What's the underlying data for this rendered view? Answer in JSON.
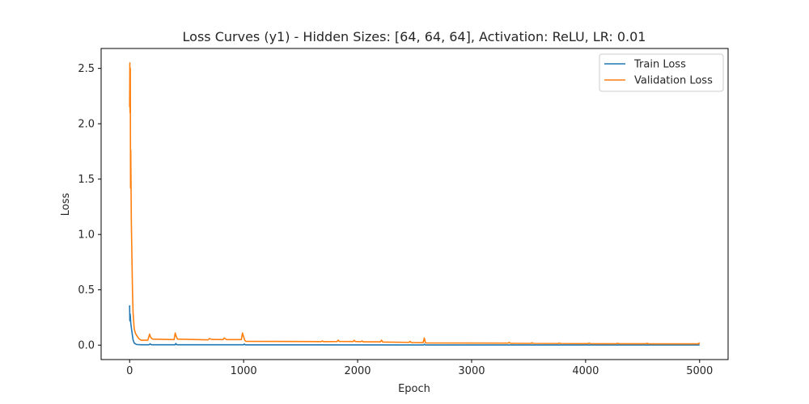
{
  "chart_data": {
    "type": "line",
    "title": "Loss Curves (y1) - Hidden Sizes: [64, 64, 64], Activation: ReLU, LR: 0.01",
    "xlabel": "Epoch",
    "ylabel": "Loss",
    "xlim": [
      -250,
      5250
    ],
    "ylim": [
      -0.13,
      2.68
    ],
    "xticks": [
      0,
      1000,
      2000,
      3000,
      4000,
      5000
    ],
    "xtick_labels": [
      "0",
      "1000",
      "2000",
      "3000",
      "4000",
      "5000"
    ],
    "yticks": [
      0.0,
      0.5,
      1.0,
      1.5,
      2.0,
      2.5
    ],
    "ytick_labels": [
      "0.0",
      "0.5",
      "1.0",
      "1.5",
      "2.0",
      "2.5"
    ],
    "grid": false,
    "legend_position": "top-right",
    "series": [
      {
        "name": "Train Loss",
        "color": "#1f77b4",
        "points": [
          [
            0,
            0.36
          ],
          [
            2,
            0.22
          ],
          [
            5,
            0.28
          ],
          [
            10,
            0.2
          ],
          [
            20,
            0.12
          ],
          [
            30,
            0.05
          ],
          [
            40,
            0.02
          ],
          [
            60,
            0.006
          ],
          [
            100,
            0.004
          ],
          [
            170,
            0.004
          ],
          [
            180,
            0.012
          ],
          [
            190,
            0.004
          ],
          [
            400,
            0.004
          ],
          [
            405,
            0.015
          ],
          [
            415,
            0.004
          ],
          [
            1000,
            0.004
          ],
          [
            1005,
            0.01
          ],
          [
            1015,
            0.003
          ],
          [
            2580,
            0.002
          ],
          [
            2585,
            0.008
          ],
          [
            2595,
            0.002
          ],
          [
            3500,
            0.002
          ],
          [
            4500,
            0.002
          ],
          [
            5000,
            0.002
          ]
        ]
      },
      {
        "name": "Validation Loss",
        "color": "#ff7f0e",
        "points": [
          [
            0,
            2.15
          ],
          [
            2,
            2.55
          ],
          [
            4,
            2.1
          ],
          [
            6,
            2.5
          ],
          [
            8,
            1.42
          ],
          [
            10,
            1.76
          ],
          [
            12,
            1.5
          ],
          [
            15,
            1.12
          ],
          [
            20,
            0.8
          ],
          [
            25,
            0.5
          ],
          [
            30,
            0.3
          ],
          [
            40,
            0.15
          ],
          [
            50,
            0.11
          ],
          [
            60,
            0.09
          ],
          [
            80,
            0.06
          ],
          [
            100,
            0.045
          ],
          [
            160,
            0.045
          ],
          [
            175,
            0.1
          ],
          [
            185,
            0.07
          ],
          [
            200,
            0.055
          ],
          [
            390,
            0.05
          ],
          [
            400,
            0.11
          ],
          [
            410,
            0.075
          ],
          [
            420,
            0.055
          ],
          [
            690,
            0.048
          ],
          [
            700,
            0.06
          ],
          [
            720,
            0.052
          ],
          [
            820,
            0.05
          ],
          [
            830,
            0.065
          ],
          [
            850,
            0.05
          ],
          [
            980,
            0.05
          ],
          [
            990,
            0.11
          ],
          [
            1000,
            0.075
          ],
          [
            1010,
            0.045
          ],
          [
            1020,
            0.035
          ],
          [
            1680,
            0.032
          ],
          [
            1690,
            0.038
          ],
          [
            1700,
            0.032
          ],
          [
            1820,
            0.033
          ],
          [
            1830,
            0.045
          ],
          [
            1840,
            0.034
          ],
          [
            1960,
            0.033
          ],
          [
            1970,
            0.044
          ],
          [
            1980,
            0.033
          ],
          [
            2030,
            0.032
          ],
          [
            2040,
            0.038
          ],
          [
            2050,
            0.03
          ],
          [
            2200,
            0.03
          ],
          [
            2210,
            0.045
          ],
          [
            2220,
            0.028
          ],
          [
            2450,
            0.025
          ],
          [
            2460,
            0.035
          ],
          [
            2470,
            0.024
          ],
          [
            2575,
            0.023
          ],
          [
            2585,
            0.065
          ],
          [
            2595,
            0.022
          ],
          [
            2600,
            0.02
          ],
          [
            3320,
            0.018
          ],
          [
            3330,
            0.025
          ],
          [
            3340,
            0.017
          ],
          [
            3520,
            0.016
          ],
          [
            3530,
            0.022
          ],
          [
            3540,
            0.016
          ],
          [
            3760,
            0.015
          ],
          [
            3770,
            0.02
          ],
          [
            3780,
            0.015
          ],
          [
            4020,
            0.014
          ],
          [
            4030,
            0.02
          ],
          [
            4040,
            0.014
          ],
          [
            4270,
            0.013
          ],
          [
            4280,
            0.018
          ],
          [
            4290,
            0.013
          ],
          [
            4530,
            0.013
          ],
          [
            4540,
            0.018
          ],
          [
            4550,
            0.012
          ],
          [
            4800,
            0.012
          ],
          [
            4990,
            0.012
          ],
          [
            4995,
            0.02
          ],
          [
            5000,
            0.012
          ]
        ]
      }
    ]
  }
}
